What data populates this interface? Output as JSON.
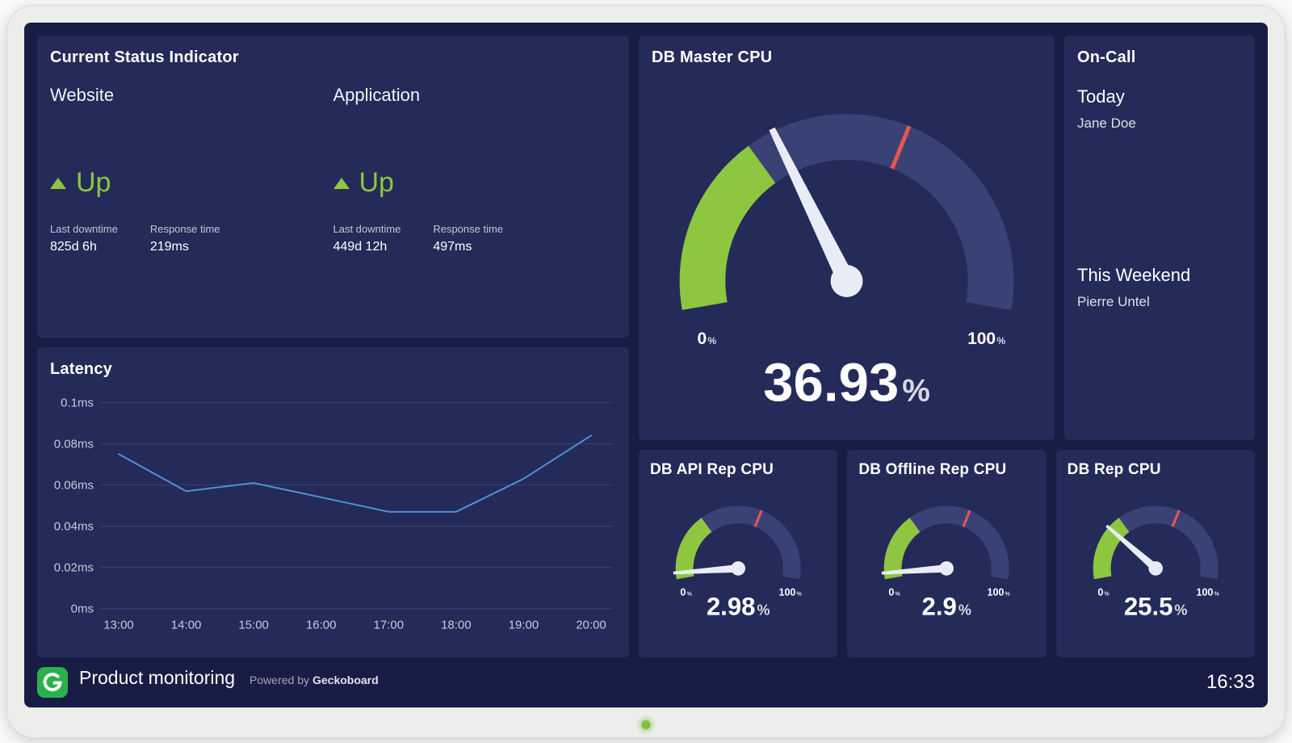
{
  "theme": {
    "green": "#8dc63f",
    "line_blue": "#4e90d9",
    "red": "#e4564f",
    "gauge_track": "#3a4175",
    "needle": "#e9ecf4",
    "panel": "#242b59",
    "background": "#181d45",
    "logo_green": "#2bb14c",
    "led_green": "#7ec142"
  },
  "status_panel": {
    "title": "Current Status Indicator",
    "items": [
      {
        "name": "Website",
        "state": "Up",
        "stats": [
          {
            "label": "Last downtime",
            "value": "825d 6h"
          },
          {
            "label": "Response time",
            "value": "219ms"
          }
        ]
      },
      {
        "name": "Application",
        "state": "Up",
        "stats": [
          {
            "label": "Last downtime",
            "value": "449d 12h"
          },
          {
            "label": "Response time",
            "value": "497ms"
          }
        ]
      }
    ]
  },
  "on_call": {
    "title": "On-Call",
    "entries": [
      {
        "period": "Today",
        "person": "Jane Doe"
      },
      {
        "period": "This Weekend",
        "person": "Pierre Untel"
      }
    ]
  },
  "footer": {
    "product": "Product monitoring",
    "powered_by": "Powered by",
    "brand": "Geckoboard",
    "time": "16:33"
  },
  "chart_data": [
    {
      "type": "line",
      "title": "Latency",
      "x": [
        "13:00",
        "14:00",
        "15:00",
        "16:00",
        "17:00",
        "18:00",
        "19:00",
        "20:00"
      ],
      "values": [
        0.075,
        0.057,
        0.061,
        0.054,
        0.047,
        0.047,
        0.063,
        0.084
      ],
      "unit": "ms",
      "ylim": [
        0,
        0.1
      ],
      "yticks": [
        0,
        0.02,
        0.04,
        0.06,
        0.08,
        0.1
      ],
      "ytick_labels": [
        "0ms",
        "0.02ms",
        "0.04ms",
        "0.06ms",
        "0.08ms",
        "0.1ms"
      ],
      "grid": true,
      "line_color": "#4e90d9"
    },
    {
      "type": "gauge",
      "title": "DB Master CPU",
      "value": 36.93,
      "display_value": "36.93",
      "unit": "%",
      "range": [
        0,
        100
      ],
      "min_label": "0",
      "max_label": "100",
      "green_zone": [
        0,
        32
      ],
      "red_tick": 61
    },
    {
      "type": "gauge",
      "title": "DB API Rep CPU",
      "value": 2.98,
      "display_value": "2.98",
      "unit": "%",
      "range": [
        0,
        100
      ],
      "min_label": "0",
      "max_label": "100",
      "green_zone": [
        0,
        32
      ],
      "red_tick": 61
    },
    {
      "type": "gauge",
      "title": "DB Offline Rep CPU",
      "value": 2.9,
      "display_value": "2.9",
      "unit": "%",
      "range": [
        0,
        100
      ],
      "min_label": "0",
      "max_label": "100",
      "green_zone": [
        0,
        32
      ],
      "red_tick": 61
    },
    {
      "type": "gauge",
      "title": "DB Rep CPU",
      "value": 25.5,
      "display_value": "25.5",
      "unit": "%",
      "range": [
        0,
        100
      ],
      "min_label": "0",
      "max_label": "100",
      "green_zone": [
        0,
        32
      ],
      "red_tick": 61
    }
  ]
}
